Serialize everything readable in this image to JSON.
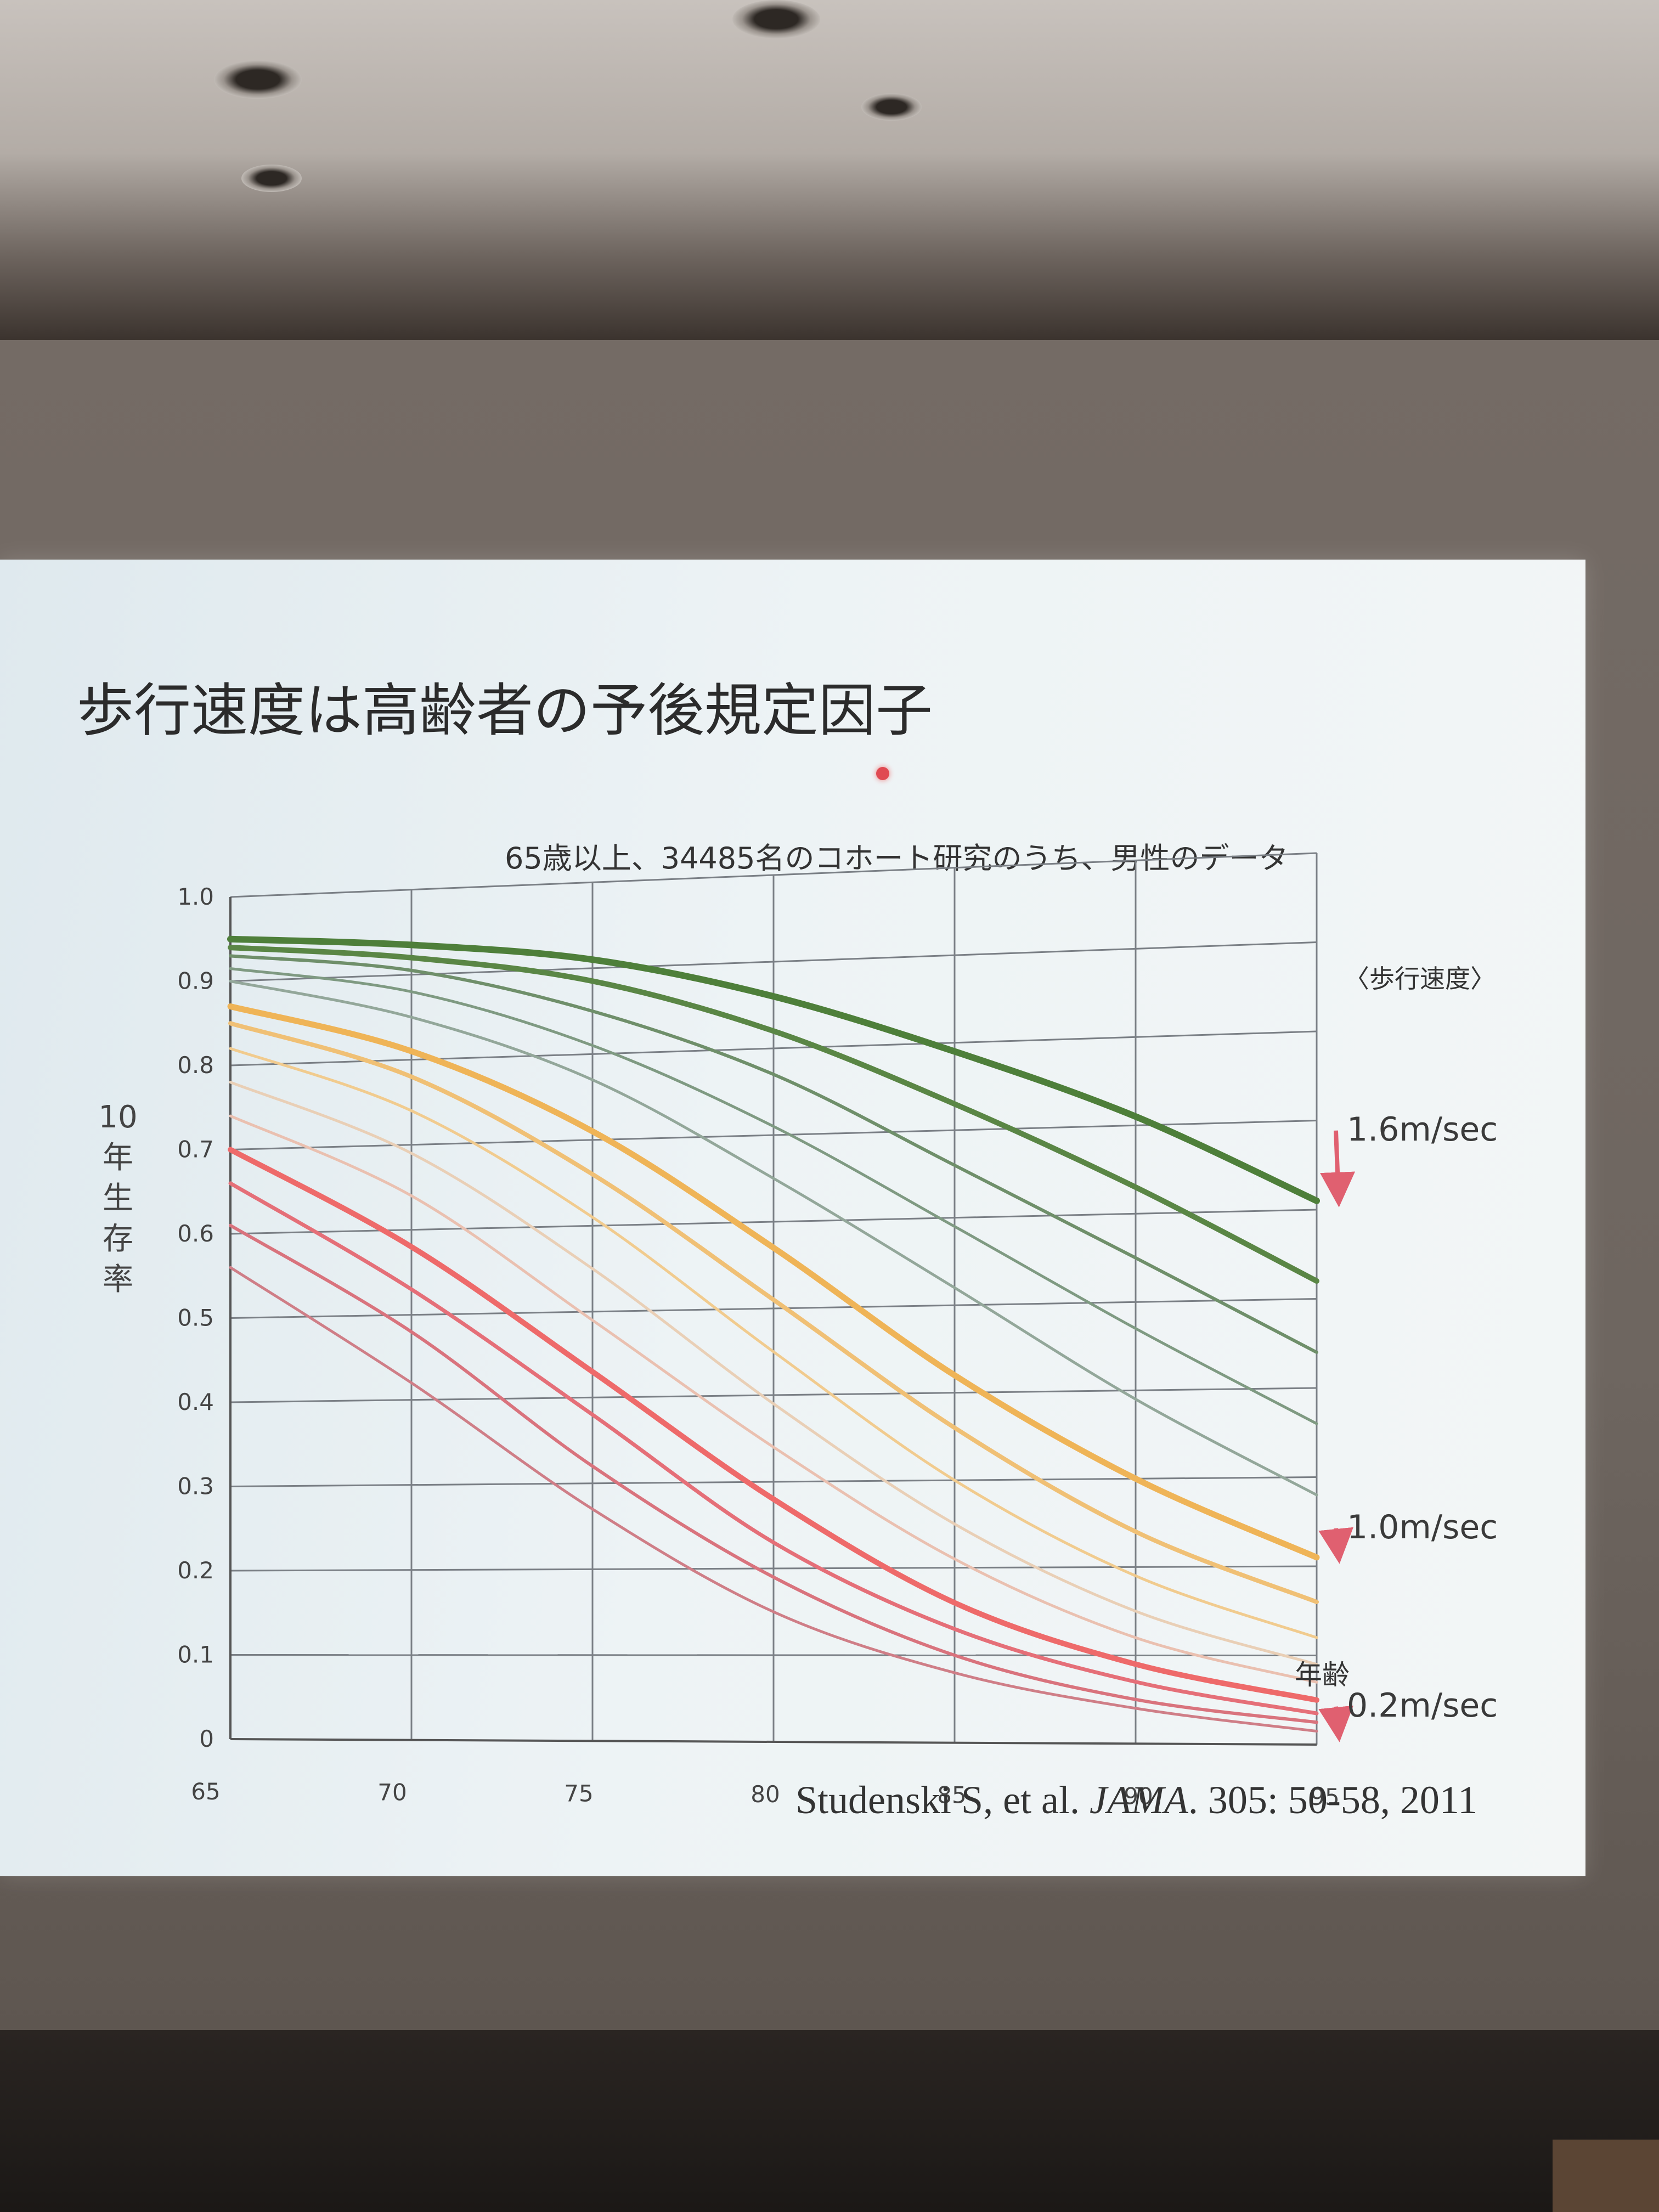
{
  "slide": {
    "title": "歩行速度は高齢者の予後規定因子",
    "citation_authors": "Studenski S, et al. ",
    "citation_journal": "JAMA",
    "citation_rest": ". 305: 50-58, 2011"
  },
  "colors": {
    "fast_green": "#4e7f3a",
    "mid_green": "#6f8f6a",
    "mid_orange": "#efb457",
    "slow_red": "#ee6a6a",
    "arrow": "#e06070"
  },
  "chart_data": {
    "type": "line",
    "subtitle": "65歳以上、34485名のコホート研究のうち、男性のデータ",
    "ylabel": "10年生存率",
    "xlabel": "年齢",
    "legend_title": "〈歩行速度〉",
    "xlim": [
      65,
      95
    ],
    "ylim": [
      0,
      1.0
    ],
    "x_ticks": [
      65,
      70,
      75,
      80,
      85,
      90,
      95
    ],
    "y_ticks": [
      {
        "value": 0,
        "label": "0"
      },
      {
        "value": 0.1,
        "label": "0.1"
      },
      {
        "value": 0.2,
        "label": "0.2"
      },
      {
        "value": 0.3,
        "label": "0.3"
      },
      {
        "value": 0.4,
        "label": "0.4"
      },
      {
        "value": 0.5,
        "label": "0.5"
      },
      {
        "value": 0.6,
        "label": "0.6"
      },
      {
        "value": 0.7,
        "label": "0.7"
      },
      {
        "value": 0.8,
        "label": "0.8"
      },
      {
        "value": 0.9,
        "label": "0.9"
      },
      {
        "value": 1.0,
        "label": "1.0"
      }
    ],
    "grid": true,
    "x": [
      65,
      70,
      75,
      80,
      85,
      90,
      95
    ],
    "series": [
      {
        "color": "#4e7f3a",
        "width": 12,
        "values": [
          0.95,
          0.935,
          0.91,
          0.86,
          0.79,
          0.71,
          0.61
        ]
      },
      {
        "color": "#5a8645",
        "width": 10,
        "values": [
          0.94,
          0.92,
          0.885,
          0.82,
          0.73,
          0.63,
          0.52
        ]
      },
      {
        "color": "#6f8f6a",
        "width": 6,
        "values": [
          0.93,
          0.905,
          0.85,
          0.77,
          0.66,
          0.55,
          0.44
        ]
      },
      {
        "color": "#7f9a82",
        "width": 5,
        "values": [
          0.915,
          0.88,
          0.81,
          0.71,
          0.59,
          0.47,
          0.36
        ]
      },
      {
        "color": "#93a79a",
        "width": 5,
        "values": [
          0.9,
          0.85,
          0.77,
          0.65,
          0.52,
          0.39,
          0.28
        ]
      },
      {
        "color": "#efb457",
        "width": 11,
        "values": [
          0.87,
          0.81,
          0.71,
          0.57,
          0.42,
          0.3,
          0.21
        ]
      },
      {
        "color": "#f0c075",
        "width": 8,
        "values": [
          0.85,
          0.78,
          0.66,
          0.51,
          0.36,
          0.24,
          0.16
        ]
      },
      {
        "color": "#f1cb8e",
        "width": 5,
        "values": [
          0.82,
          0.74,
          0.61,
          0.45,
          0.3,
          0.19,
          0.12
        ]
      },
      {
        "color": "#e9cfb6",
        "width": 5,
        "values": [
          0.78,
          0.69,
          0.55,
          0.39,
          0.25,
          0.15,
          0.09
        ]
      },
      {
        "color": "#eac0b0",
        "width": 5,
        "values": [
          0.74,
          0.64,
          0.49,
          0.34,
          0.21,
          0.12,
          0.07
        ]
      },
      {
        "color": "#ee6a6a",
        "width": 10,
        "values": [
          0.7,
          0.58,
          0.43,
          0.28,
          0.16,
          0.09,
          0.05
        ]
      },
      {
        "color": "#e56f78",
        "width": 7,
        "values": [
          0.66,
          0.53,
          0.38,
          0.23,
          0.13,
          0.07,
          0.035
        ]
      },
      {
        "color": "#d9737d",
        "width": 6,
        "values": [
          0.61,
          0.48,
          0.32,
          0.19,
          0.1,
          0.05,
          0.025
        ]
      },
      {
        "color": "#cf7e87",
        "width": 5,
        "values": [
          0.56,
          0.42,
          0.27,
          0.15,
          0.08,
          0.04,
          0.015
        ]
      }
    ],
    "annotations": [
      {
        "label": "1.6m/sec",
        "x": 95,
        "y": 0.61
      },
      {
        "label": "1.0m/sec",
        "x": 95,
        "y": 0.21
      },
      {
        "label": "0.2m/sec",
        "x": 95,
        "y": 0.01
      }
    ]
  }
}
